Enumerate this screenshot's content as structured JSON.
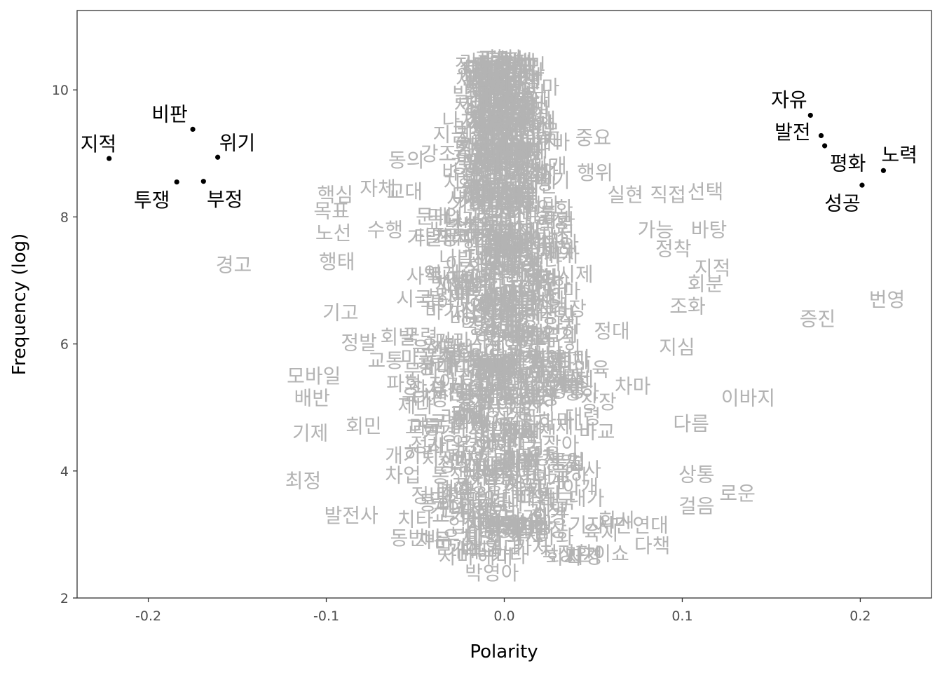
{
  "chart_data": {
    "type": "scatter",
    "xlabel": "Polarity",
    "ylabel": "Frequency (log)",
    "xlim": [
      -0.24,
      0.24
    ],
    "ylim": [
      2.0,
      11.25
    ],
    "x_ticks": [
      -0.2,
      -0.1,
      0.0,
      0.1,
      0.2
    ],
    "x_tick_labels": [
      "-0.2",
      "-0.1",
      "0.0",
      "0.1",
      "0.2"
    ],
    "y_ticks": [
      2,
      4,
      6,
      8,
      10
    ],
    "y_tick_labels": [
      "2",
      "4",
      "6",
      "8",
      "10"
    ],
    "grid": false,
    "legend": "none",
    "colors": {
      "background_words": "#b3b3b3",
      "highlighted_words": "#000000",
      "panel_border": "#333333"
    },
    "highlighted_points": [
      {
        "label": "지적",
        "x": -0.222,
        "y": 8.92,
        "label_x": -0.228,
        "label_y": 9.15
      },
      {
        "label": "비판",
        "x": -0.175,
        "y": 9.38,
        "label_x": -0.188,
        "label_y": 9.62
      },
      {
        "label": "위기",
        "x": -0.161,
        "y": 8.94,
        "label_x": -0.15,
        "label_y": 9.17
      },
      {
        "label": "투쟁",
        "x": -0.184,
        "y": 8.55,
        "label_x": -0.198,
        "label_y": 8.27
      },
      {
        "label": "부정",
        "x": -0.169,
        "y": 8.56,
        "label_x": -0.157,
        "label_y": 8.28
      },
      {
        "label": "자유",
        "x": 0.172,
        "y": 9.6,
        "label_x": 0.16,
        "label_y": 9.85
      },
      {
        "label": "발전",
        "x": 0.178,
        "y": 9.28,
        "label_x": 0.162,
        "label_y": 9.34
      },
      {
        "label": "평화",
        "x": 0.18,
        "y": 9.12,
        "label_x": 0.193,
        "label_y": 8.85
      },
      {
        "label": "노력",
        "x": 0.213,
        "y": 8.73,
        "label_x": 0.222,
        "label_y": 8.98
      },
      {
        "label": "성공",
        "x": 0.201,
        "y": 8.5,
        "label_x": 0.19,
        "label_y": 8.22
      }
    ],
    "background_words": [
      {
        "label": "선거",
        "x": -0.015,
        "y": 10.2
      },
      {
        "label": "지금",
        "x": -0.03,
        "y": 9.3
      },
      {
        "label": "강조",
        "x": -0.037,
        "y": 9.0
      },
      {
        "label": "동의",
        "x": -0.055,
        "y": 8.9
      },
      {
        "label": "중요",
        "x": 0.05,
        "y": 9.25
      },
      {
        "label": "자체",
        "x": -0.071,
        "y": 8.45
      },
      {
        "label": "핵심",
        "x": -0.095,
        "y": 8.35
      },
      {
        "label": "목표",
        "x": -0.097,
        "y": 8.1
      },
      {
        "label": "노선",
        "x": -0.096,
        "y": 7.75
      },
      {
        "label": "수행",
        "x": -0.067,
        "y": 7.8
      },
      {
        "label": "행태",
        "x": -0.094,
        "y": 7.3
      },
      {
        "label": "경고",
        "x": -0.152,
        "y": 7.25
      },
      {
        "label": "기고",
        "x": -0.092,
        "y": 6.5
      },
      {
        "label": "모바일",
        "x": -0.107,
        "y": 5.5
      },
      {
        "label": "배반",
        "x": -0.108,
        "y": 5.15
      },
      {
        "label": "기제",
        "x": -0.109,
        "y": 4.6
      },
      {
        "label": "최정",
        "x": -0.113,
        "y": 3.85
      },
      {
        "label": "발전사",
        "x": -0.086,
        "y": 3.3
      },
      {
        "label": "동반",
        "x": -0.054,
        "y": 2.95
      },
      {
        "label": "바우처",
        "x": -0.03,
        "y": 2.95
      },
      {
        "label": "박영아",
        "x": -0.007,
        "y": 2.4
      },
      {
        "label": "해미",
        "x": -0.005,
        "y": 2.65
      },
      {
        "label": "직장",
        "x": 0.03,
        "y": 2.7
      },
      {
        "label": "환이쇼",
        "x": 0.055,
        "y": 2.7
      },
      {
        "label": "실현",
        "x": 0.068,
        "y": 8.35
      },
      {
        "label": "직접",
        "x": 0.092,
        "y": 8.35
      },
      {
        "label": "선택",
        "x": 0.113,
        "y": 8.4
      },
      {
        "label": "바탕",
        "x": 0.115,
        "y": 7.8
      },
      {
        "label": "가능",
        "x": 0.085,
        "y": 7.8
      },
      {
        "label": "정착",
        "x": 0.095,
        "y": 7.5
      },
      {
        "label": "지적",
        "x": 0.117,
        "y": 7.2
      },
      {
        "label": "회분",
        "x": 0.113,
        "y": 6.95
      },
      {
        "label": "번영",
        "x": 0.215,
        "y": 6.7
      },
      {
        "label": "증진",
        "x": 0.176,
        "y": 6.4
      },
      {
        "label": "이바지",
        "x": 0.137,
        "y": 5.15
      },
      {
        "label": "지심",
        "x": 0.097,
        "y": 5.95
      },
      {
        "label": "다름",
        "x": 0.105,
        "y": 4.75
      },
      {
        "label": "상통",
        "x": 0.108,
        "y": 3.95
      },
      {
        "label": "로운",
        "x": 0.131,
        "y": 3.65
      },
      {
        "label": "걸음",
        "x": 0.108,
        "y": 3.45
      },
      {
        "label": "시만연대",
        "x": 0.072,
        "y": 3.15
      },
      {
        "label": "조화",
        "x": 0.103,
        "y": 6.6
      },
      {
        "label": "행위",
        "x": 0.051,
        "y": 8.7
      },
      {
        "label": "이날",
        "x": 0.018,
        "y": 9.3
      }
    ]
  }
}
